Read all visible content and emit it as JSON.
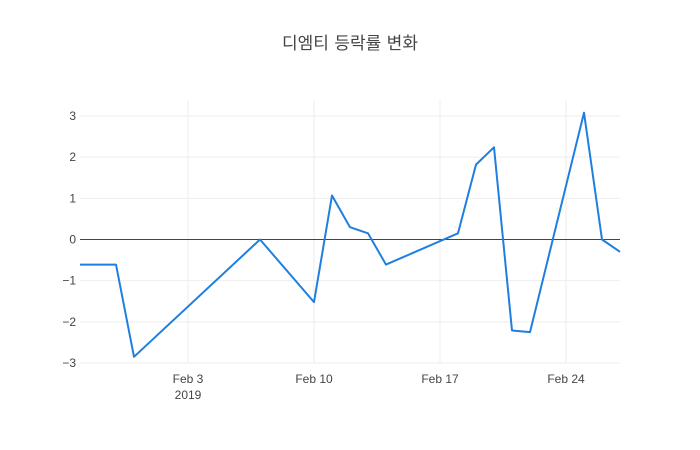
{
  "chart_data": {
    "type": "line",
    "title": "디엠티 등락률 변화",
    "xlabel": "",
    "ylabel": "",
    "grid": true,
    "x_ticks": [
      {
        "date": "2019-02-03",
        "label": "Feb 3",
        "sublabel": "2019"
      },
      {
        "date": "2019-02-10",
        "label": "Feb 10",
        "sublabel": ""
      },
      {
        "date": "2019-02-17",
        "label": "Feb 17",
        "sublabel": ""
      },
      {
        "date": "2019-02-24",
        "label": "Feb 24",
        "sublabel": ""
      }
    ],
    "xlim": [
      "2019-01-28",
      "2019-02-26"
    ],
    "ylim": [
      -3.0,
      3.3
    ],
    "y_ticks": [
      {
        "value": 3,
        "label": "3"
      },
      {
        "value": 2,
        "label": "2"
      },
      {
        "value": 1,
        "label": "1"
      },
      {
        "value": 0,
        "label": "0"
      },
      {
        "value": -1,
        "label": "−1"
      },
      {
        "value": -2,
        "label": "−2"
      },
      {
        "value": -3,
        "label": "−3"
      }
    ],
    "series": [
      {
        "color": "#1f7fe0",
        "points": [
          {
            "x": "2019-01-28",
            "y": -0.61
          },
          {
            "x": "2019-01-29",
            "y": -0.61
          },
          {
            "x": "2019-01-30",
            "y": -0.61
          },
          {
            "x": "2019-01-31",
            "y": -2.85
          },
          {
            "x": "2019-02-07",
            "y": 0.0
          },
          {
            "x": "2019-02-10",
            "y": -1.52
          },
          {
            "x": "2019-02-11",
            "y": 1.07
          },
          {
            "x": "2019-02-12",
            "y": 0.3
          },
          {
            "x": "2019-02-13",
            "y": 0.15
          },
          {
            "x": "2019-02-14",
            "y": -0.61
          },
          {
            "x": "2019-02-18",
            "y": 0.15
          },
          {
            "x": "2019-02-19",
            "y": 1.82
          },
          {
            "x": "2019-02-20",
            "y": 2.24
          },
          {
            "x": "2019-02-21",
            "y": -2.21
          },
          {
            "x": "2019-02-22",
            "y": -2.25
          },
          {
            "x": "2019-02-25",
            "y": 3.08
          },
          {
            "x": "2019-02-26",
            "y": 0.0
          },
          {
            "x": "2019-02-27",
            "y": -0.3
          }
        ]
      }
    ]
  }
}
